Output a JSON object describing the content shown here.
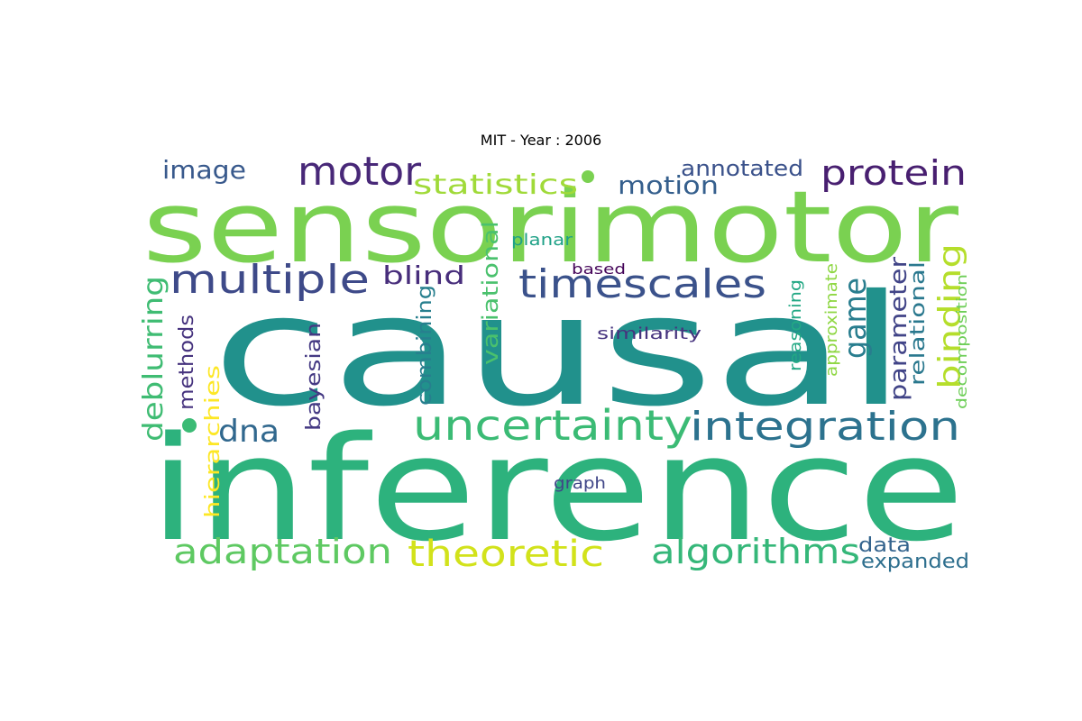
{
  "title": "MIT - Year : 2006",
  "words": [
    {
      "text": "causal",
      "color": "#21918c"
    },
    {
      "text": "inference",
      "color": "#2db27d"
    },
    {
      "text": "sensorimotor",
      "color": "#7ad151"
    },
    {
      "text": "uncertainty",
      "color": "#3bbb75"
    },
    {
      "text": "integration",
      "color": "#2c728e"
    },
    {
      "text": "timescales",
      "color": "#3b528b"
    },
    {
      "text": "multiple",
      "color": "#3e4a89"
    },
    {
      "text": "motor",
      "color": "#482878"
    },
    {
      "text": "protein",
      "color": "#481f70"
    },
    {
      "text": "adaptation",
      "color": "#5ec962"
    },
    {
      "text": "theoretic",
      "color": "#d2e21b"
    },
    {
      "text": "algorithms",
      "color": "#35b779"
    },
    {
      "text": "image",
      "color": "#38598c"
    },
    {
      "text": "statistics",
      "color": "#a0da39"
    },
    {
      "text": "motion",
      "color": "#355f8d"
    },
    {
      "text": "annotated",
      "color": "#3b528b"
    },
    {
      "text": "blind",
      "color": "#472d7b"
    },
    {
      "text": "dna",
      "color": "#31688e"
    },
    {
      "text": "game",
      "color": "#287d8e"
    },
    {
      "text": "binding",
      "color": "#b5de2b"
    },
    {
      "text": "parameter",
      "color": "#414487"
    },
    {
      "text": "relational",
      "color": "#2a788e"
    },
    {
      "text": "deblurring",
      "color": "#3fbc73"
    },
    {
      "text": "methods",
      "color": "#46337e"
    },
    {
      "text": "hierarchies",
      "color": "#fde725"
    },
    {
      "text": "bayesian",
      "color": "#443983"
    },
    {
      "text": "combining",
      "color": "#277f8e"
    },
    {
      "text": "variational",
      "color": "#4ac16d"
    },
    {
      "text": "planar",
      "color": "#1fa187"
    },
    {
      "text": "based",
      "color": "#450559"
    },
    {
      "text": "similarity",
      "color": "#46337e"
    },
    {
      "text": "reasoning",
      "color": "#22a884"
    },
    {
      "text": "approximate",
      "color": "#8fd744"
    },
    {
      "text": "decomposition",
      "color": "#6ece58"
    },
    {
      "text": "graph",
      "color": "#404688"
    },
    {
      "text": "data",
      "color": "#33638d"
    },
    {
      "text": "expanded",
      "color": "#2e6f8e"
    }
  ]
}
